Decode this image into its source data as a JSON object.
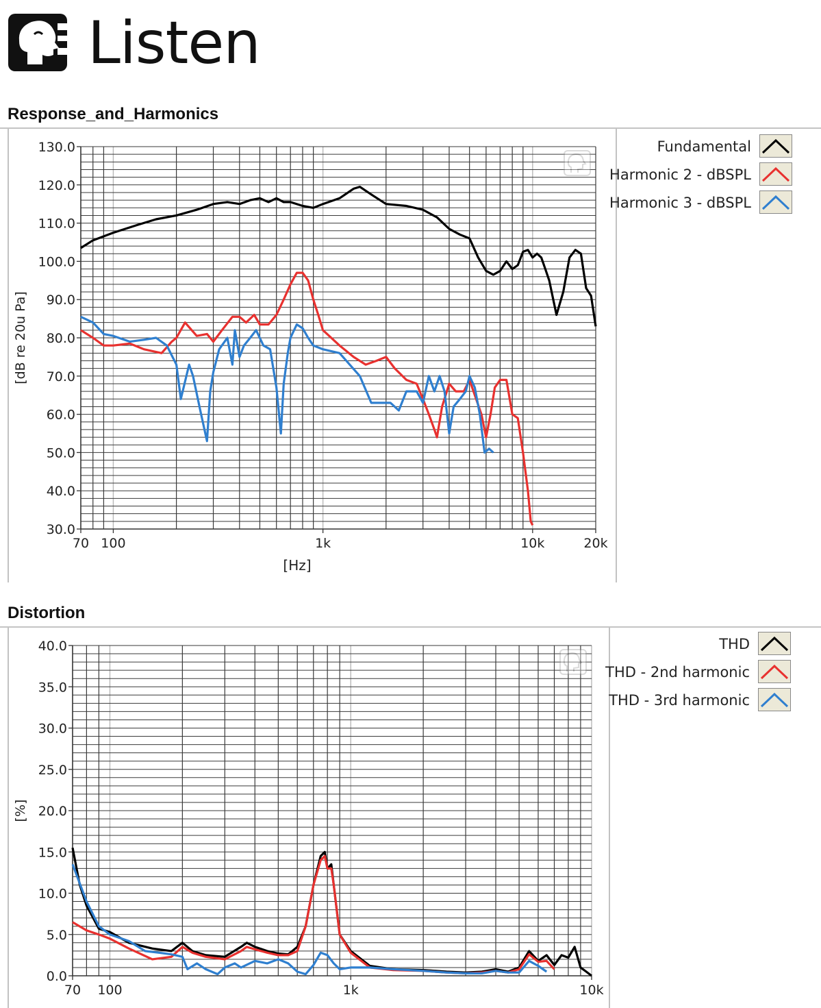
{
  "logo": {
    "text": "Listen"
  },
  "chart_data": [
    {
      "id": "response",
      "type": "line",
      "title": "Response_and_Harmonics",
      "xlabel": "[Hz]",
      "ylabel": "[dB re 20u Pa]",
      "x_scale": "log",
      "xlim": [
        70,
        20000
      ],
      "ylim": [
        30,
        130
      ],
      "y_ticks": [
        "130.0",
        "120.0",
        "110.0",
        "100.0",
        "90.0",
        "80.0",
        "70.0",
        "60.0",
        "50.0",
        "40.0",
        "30.0"
      ],
      "y_tick_values": [
        130,
        120,
        110,
        100,
        90,
        80,
        70,
        60,
        50,
        40,
        30
      ],
      "x_ticks": [
        {
          "value": 70,
          "label": "70"
        },
        {
          "value": 100,
          "label": "100"
        },
        {
          "value": 1000,
          "label": "1k"
        },
        {
          "value": 10000,
          "label": "10k"
        },
        {
          "value": 20000,
          "label": "20k"
        }
      ],
      "grid": true,
      "legend_position": "right",
      "series": [
        {
          "name": "Fundamental",
          "color": "#000000",
          "x": [
            70,
            80,
            100,
            130,
            160,
            200,
            250,
            300,
            350,
            400,
            450,
            500,
            550,
            600,
            650,
            700,
            800,
            900,
            1000,
            1200,
            1400,
            1500,
            1700,
            2000,
            2500,
            3000,
            3500,
            4000,
            4500,
            5000,
            5500,
            6000,
            6500,
            7000,
            7500,
            8000,
            8500,
            9000,
            9500,
            10000,
            10500,
            11000,
            11500,
            12000,
            13000,
            14000,
            15000,
            16000,
            17000,
            18000,
            19000,
            20000
          ],
          "y": [
            103.5,
            105.5,
            107.5,
            109.5,
            111,
            112,
            113.5,
            115,
            115.5,
            115,
            116,
            116.5,
            115.5,
            116.5,
            115.5,
            115.5,
            114.5,
            114,
            115,
            116.5,
            119,
            119.5,
            117.5,
            115,
            114.5,
            113.5,
            111.5,
            108.5,
            107,
            106,
            101,
            97.5,
            96.5,
            97.5,
            100,
            98,
            99,
            102.5,
            103,
            101,
            102,
            101,
            98,
            95,
            86,
            92,
            101,
            103,
            102,
            93,
            91,
            83
          ]
        },
        {
          "name": "Harmonic 2 - dBSPL",
          "color": "#e8312f",
          "x": [
            70,
            80,
            90,
            100,
            120,
            140,
            170,
            190,
            200,
            220,
            250,
            280,
            300,
            330,
            370,
            400,
            430,
            470,
            500,
            550,
            600,
            650,
            700,
            750,
            800,
            850,
            900,
            950,
            1000,
            1200,
            1400,
            1600,
            1800,
            2000,
            2200,
            2500,
            2800,
            3000,
            3200,
            3400,
            3500,
            3700,
            4000,
            4300,
            4700,
            5000,
            5300,
            5700,
            6000,
            6300,
            6600,
            7000,
            7500,
            8000,
            8500,
            9000,
            9500,
            9800,
            10000
          ],
          "y": [
            82,
            80,
            78,
            78,
            78.5,
            77,
            76,
            79,
            80,
            84,
            80.5,
            81,
            79,
            82,
            85.5,
            85.5,
            84,
            86,
            83.5,
            83.5,
            86,
            90,
            94,
            97,
            97,
            95,
            90,
            86,
            82,
            78,
            75,
            73,
            74,
            75,
            72,
            69,
            68,
            64,
            60,
            56,
            54,
            62,
            68,
            66,
            66,
            69,
            65,
            60,
            54,
            60,
            67,
            69,
            69,
            60,
            59,
            50,
            40,
            32,
            31
          ]
        },
        {
          "name": "Harmonic 3 - dBSPL",
          "color": "#2f7fcf",
          "x": [
            70,
            80,
            90,
            100,
            120,
            140,
            160,
            180,
            200,
            210,
            230,
            240,
            260,
            280,
            290,
            300,
            320,
            350,
            370,
            380,
            400,
            420,
            450,
            480,
            520,
            560,
            600,
            630,
            650,
            680,
            700,
            750,
            800,
            850,
            900,
            1000,
            1200,
            1500,
            1700,
            1900,
            2100,
            2300,
            2500,
            2800,
            3000,
            3200,
            3400,
            3600,
            3800,
            4000,
            4200,
            4500,
            4800,
            5000,
            5300,
            5600,
            5900,
            6200,
            6500
          ],
          "y": [
            85.5,
            84,
            81,
            80.5,
            79,
            79.5,
            80,
            78,
            73,
            64,
            73,
            70,
            61,
            53,
            66,
            71,
            77,
            80,
            73,
            82,
            75,
            78,
            80,
            82,
            78,
            77,
            67,
            55,
            68,
            76,
            80,
            83.5,
            82.5,
            80,
            78,
            77,
            76,
            70,
            63,
            63,
            63,
            61,
            66,
            66,
            63,
            70,
            66,
            70,
            66,
            55,
            62,
            64,
            66,
            70,
            67,
            60,
            50,
            51,
            50
          ]
        }
      ]
    },
    {
      "id": "distortion",
      "type": "line",
      "title": "Distortion",
      "xlabel": "",
      "ylabel": "[%]",
      "x_scale": "log",
      "xlim": [
        70,
        10000
      ],
      "ylim": [
        0,
        40
      ],
      "y_ticks": [
        "40.0",
        "35.0",
        "30.0",
        "25.0",
        "20.0",
        "15.0",
        "10.0",
        "5.0",
        "0.0"
      ],
      "y_tick_values": [
        40,
        35,
        30,
        25,
        20,
        15,
        10,
        5,
        0
      ],
      "x_ticks": [
        {
          "value": 70,
          "label": "70"
        },
        {
          "value": 100,
          "label": "100"
        },
        {
          "value": 1000,
          "label": "1k"
        },
        {
          "value": 10000,
          "label": "10k"
        }
      ],
      "grid": true,
      "legend_position": "right",
      "series": [
        {
          "name": "THD",
          "color": "#000000",
          "x": [
            70,
            75,
            80,
            90,
            100,
            120,
            150,
            180,
            200,
            220,
            250,
            300,
            350,
            370,
            400,
            450,
            500,
            550,
            600,
            650,
            700,
            750,
            780,
            800,
            830,
            850,
            900,
            1000,
            1200,
            1500,
            2000,
            2500,
            3000,
            3500,
            4000,
            4500,
            5000,
            5500,
            6000,
            6500,
            7000,
            7500,
            8000,
            8500,
            9000,
            9500,
            10000
          ],
          "y": [
            15.5,
            11,
            8.5,
            5.7,
            5.3,
            4,
            3.3,
            3,
            4,
            3,
            2.5,
            2.3,
            3.5,
            4,
            3.5,
            3,
            2.7,
            2.6,
            3.5,
            6,
            11,
            14.5,
            15,
            13,
            13.5,
            11,
            5,
            3,
            1.2,
            0.8,
            0.7,
            0.5,
            0.4,
            0.5,
            0.8,
            0.5,
            1,
            3,
            1.8,
            2.5,
            1.3,
            2.5,
            2.2,
            3.5,
            1,
            0.5,
            0
          ]
        },
        {
          "name": "THD - 2nd harmonic",
          "color": "#e8312f",
          "x": [
            70,
            80,
            90,
            100,
            120,
            150,
            180,
            200,
            220,
            250,
            300,
            350,
            370,
            400,
            450,
            500,
            550,
            600,
            650,
            700,
            750,
            780,
            800,
            830,
            850,
            900,
            1000,
            1200,
            1500,
            2000,
            2500,
            3000,
            3500,
            4000,
            4500,
            5000,
            5500,
            6000,
            6500,
            7000
          ],
          "y": [
            6.5,
            5.5,
            5,
            4.5,
            3.3,
            2,
            2.3,
            3.5,
            2.8,
            2.3,
            2,
            3,
            3.5,
            3.2,
            2.8,
            2.5,
            2.5,
            3,
            6,
            11,
            14,
            14.5,
            13,
            13,
            11,
            5,
            2.8,
            1,
            0.7,
            0.6,
            0.4,
            0.3,
            0.4,
            0.6,
            0.4,
            0.8,
            2.6,
            1.7,
            1.8,
            0.8
          ]
        },
        {
          "name": "THD - 3rd harmonic",
          "color": "#2f7fcf",
          "x": [
            70,
            80,
            90,
            100,
            120,
            140,
            160,
            180,
            200,
            210,
            230,
            250,
            280,
            300,
            330,
            350,
            400,
            450,
            500,
            550,
            600,
            650,
            700,
            750,
            800,
            850,
            900,
            1000,
            1200,
            1500,
            2000,
            2500,
            3000,
            3500,
            4000,
            4500,
            5000,
            5500,
            6000,
            6500
          ],
          "y": [
            13.5,
            9,
            6,
            5,
            4.2,
            3,
            2.8,
            2.6,
            2.3,
            0.8,
            1.5,
            0.8,
            0.2,
            1,
            1.5,
            1,
            1.8,
            1.5,
            2,
            1.5,
            0.5,
            0.2,
            1.3,
            2.8,
            2.5,
            1.5,
            0.8,
            1,
            1,
            0.8,
            0.6,
            0.4,
            0.3,
            0.3,
            0.6,
            0.4,
            0.4,
            1.8,
            1.2,
            0.5
          ]
        }
      ]
    }
  ]
}
